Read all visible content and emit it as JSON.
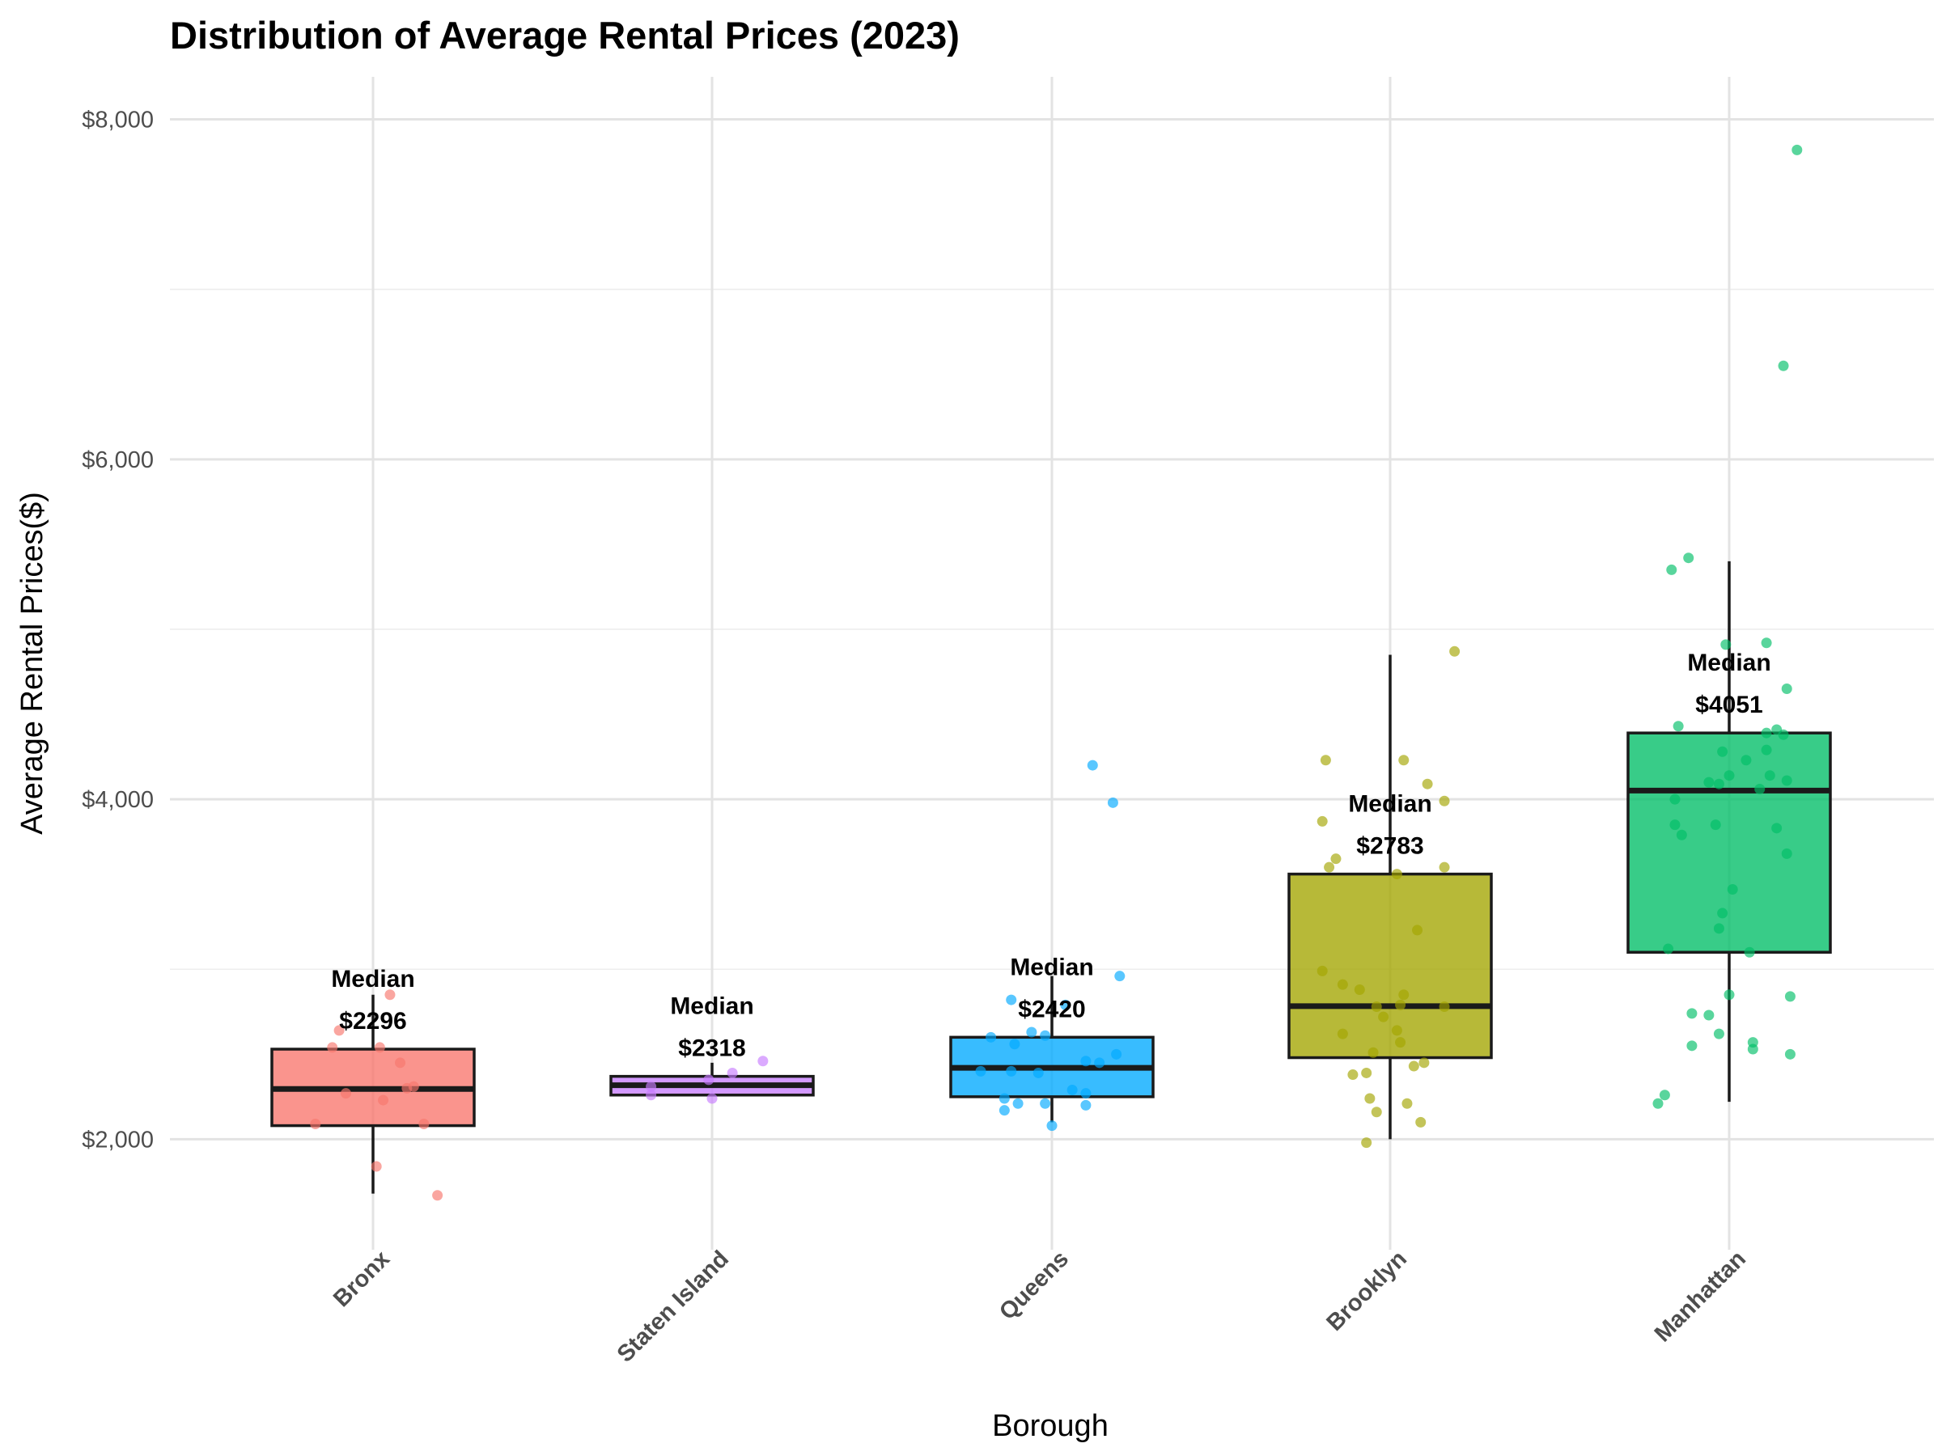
{
  "chart_data": {
    "type": "box",
    "title": "Distribution of Average Rental Prices (2023)",
    "xlabel": "Borough",
    "ylabel": "Average Rental Prices($)",
    "ylim": [
      1350,
      8250
    ],
    "yticks": [
      2000,
      4000,
      6000,
      8000
    ],
    "ytick_labels": [
      "$2,000",
      "$4,000",
      "$6,000",
      "$8,000"
    ],
    "grid": true,
    "legend": "none",
    "median_label_prefix": "Median",
    "categories": [
      "Bronx",
      "Staten Island",
      "Queens",
      "Brooklyn",
      "Manhattan"
    ],
    "boxes": [
      {
        "name": "Bronx",
        "color": "#F8766D",
        "min": 1680,
        "q1": 2080,
        "median": 2296,
        "q3": 2530,
        "max": 2850,
        "median_label": "$2296",
        "points": [
          [
            0.05,
            2850
          ],
          [
            -0.1,
            2640
          ],
          [
            -0.12,
            2540
          ],
          [
            0.02,
            2540
          ],
          [
            0.08,
            2450
          ],
          [
            -0.08,
            2270
          ],
          [
            0.12,
            2310
          ],
          [
            0.1,
            2300
          ],
          [
            0.03,
            2230
          ],
          [
            -0.17,
            2090
          ],
          [
            0.15,
            2090
          ],
          [
            0.01,
            1840
          ],
          [
            0.19,
            1670
          ]
        ]
      },
      {
        "name": "Staten Island",
        "color": "#C77CFF",
        "min": 2260,
        "q1": 2260,
        "median": 2318,
        "q3": 2370,
        "max": 2450,
        "median_label": "$2318",
        "points": [
          [
            0.15,
            2460
          ],
          [
            0.06,
            2390
          ],
          [
            -0.01,
            2350
          ],
          [
            -0.18,
            2310
          ],
          [
            -0.18,
            2260
          ],
          [
            0.0,
            2240
          ]
        ]
      },
      {
        "name": "Queens",
        "color": "#00A9FF",
        "min": 2100,
        "q1": 2250,
        "median": 2420,
        "q3": 2600,
        "max": 2960,
        "median_label": "$2420",
        "points": [
          [
            0.12,
            4200
          ],
          [
            0.18,
            3980
          ],
          [
            0.2,
            2960
          ],
          [
            -0.12,
            2820
          ],
          [
            0.04,
            2790
          ],
          [
            -0.06,
            2630
          ],
          [
            -0.18,
            2600
          ],
          [
            -0.11,
            2560
          ],
          [
            -0.02,
            2610
          ],
          [
            0.19,
            2500
          ],
          [
            0.1,
            2460
          ],
          [
            0.14,
            2450
          ],
          [
            -0.21,
            2400
          ],
          [
            -0.12,
            2400
          ],
          [
            -0.04,
            2390
          ],
          [
            0.06,
            2290
          ],
          [
            0.1,
            2270
          ],
          [
            -0.14,
            2240
          ],
          [
            -0.1,
            2210
          ],
          [
            -0.02,
            2210
          ],
          [
            0.1,
            2200
          ],
          [
            -0.14,
            2170
          ],
          [
            0.0,
            2080
          ]
        ]
      },
      {
        "name": "Brooklyn",
        "color": "#A3A500",
        "min": 2000,
        "q1": 2480,
        "median": 2783,
        "q3": 3560,
        "max": 4850,
        "median_label": "$2783",
        "points": [
          [
            0.19,
            4870
          ],
          [
            -0.19,
            4230
          ],
          [
            0.04,
            4230
          ],
          [
            0.11,
            4090
          ],
          [
            0.16,
            3990
          ],
          [
            -0.2,
            3870
          ],
          [
            -0.16,
            3650
          ],
          [
            -0.18,
            3600
          ],
          [
            0.16,
            3600
          ],
          [
            0.02,
            3560
          ],
          [
            0.08,
            3230
          ],
          [
            -0.2,
            2990
          ],
          [
            -0.14,
            2910
          ],
          [
            -0.09,
            2880
          ],
          [
            0.04,
            2850
          ],
          [
            0.03,
            2790
          ],
          [
            -0.04,
            2780
          ],
          [
            0.16,
            2780
          ],
          [
            -0.02,
            2720
          ],
          [
            -0.14,
            2620
          ],
          [
            0.02,
            2640
          ],
          [
            0.03,
            2570
          ],
          [
            -0.05,
            2510
          ],
          [
            0.07,
            2430
          ],
          [
            0.1,
            2450
          ],
          [
            -0.11,
            2380
          ],
          [
            -0.07,
            2390
          ],
          [
            -0.06,
            2240
          ],
          [
            0.05,
            2210
          ],
          [
            -0.04,
            2160
          ],
          [
            0.09,
            2100
          ],
          [
            -0.07,
            1980
          ]
        ]
      },
      {
        "name": "Manhattan",
        "color": "#00BE67",
        "min": 2220,
        "q1": 3100,
        "median": 4051,
        "q3": 4390,
        "max": 5400,
        "median_label": "$4051",
        "points": [
          [
            0.2,
            7820
          ],
          [
            0.16,
            6550
          ],
          [
            -0.12,
            5420
          ],
          [
            -0.17,
            5350
          ],
          [
            0.11,
            4920
          ],
          [
            -0.01,
            4910
          ],
          [
            0.17,
            4650
          ],
          [
            -0.15,
            4430
          ],
          [
            0.14,
            4410
          ],
          [
            0.11,
            4390
          ],
          [
            0.16,
            4380
          ],
          [
            -0.02,
            4280
          ],
          [
            0.05,
            4230
          ],
          [
            0.11,
            4290
          ],
          [
            0.0,
            4140
          ],
          [
            0.12,
            4140
          ],
          [
            -0.06,
            4100
          ],
          [
            -0.03,
            4090
          ],
          [
            0.17,
            4110
          ],
          [
            0.09,
            4060
          ],
          [
            -0.16,
            4000
          ],
          [
            -0.16,
            3850
          ],
          [
            -0.04,
            3850
          ],
          [
            0.14,
            3830
          ],
          [
            -0.14,
            3790
          ],
          [
            0.17,
            3680
          ],
          [
            0.01,
            3470
          ],
          [
            -0.02,
            3330
          ],
          [
            -0.03,
            3240
          ],
          [
            -0.18,
            3120
          ],
          [
            0.06,
            3100
          ],
          [
            0.0,
            2850
          ],
          [
            0.18,
            2840
          ],
          [
            -0.11,
            2740
          ],
          [
            -0.06,
            2730
          ],
          [
            -0.11,
            2550
          ],
          [
            -0.03,
            2620
          ],
          [
            0.07,
            2570
          ],
          [
            0.07,
            2530
          ],
          [
            0.18,
            2500
          ],
          [
            -0.19,
            2260
          ],
          [
            -0.21,
            2210
          ]
        ]
      }
    ]
  }
}
